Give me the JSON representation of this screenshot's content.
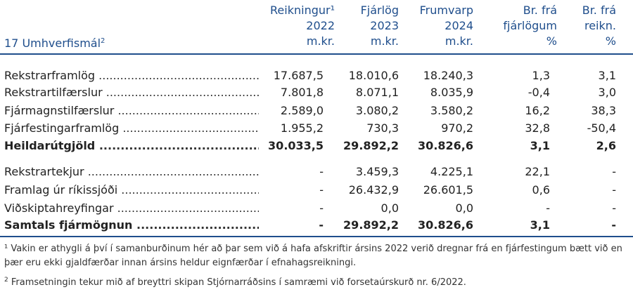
{
  "header": {
    "title": "17 Umhverfismál",
    "title_sup": "2",
    "columns": [
      {
        "l1": "Reikningur¹",
        "l2": "2022",
        "l3": "m.kr."
      },
      {
        "l1": "Fjárlög",
        "l2": "2023",
        "l3": "m.kr."
      },
      {
        "l1": "Frumvarp",
        "l2": "2024",
        "l3": "m.kr."
      },
      {
        "l1": "Br. frá",
        "l2": "fjárlögum",
        "l3": "%"
      },
      {
        "l1": "Br. frá",
        "l2": "reikn.",
        "l3": "%"
      }
    ]
  },
  "rows": [
    {
      "label": "Rekstrarframlög",
      "v1": "17.687,5",
      "v2": "18.010,6",
      "v3": "18.240,3",
      "v4": "1,3",
      "v5": "3,1"
    },
    {
      "label": "Rekstrartilfærslur",
      "v1": "7.801,8",
      "v2": "8.071,1",
      "v3": "8.035,9",
      "v4": "-0,4",
      "v5": "3,0"
    },
    {
      "label": "Fjármagnstilfærslur",
      "v1": "2.589,0",
      "v2": "3.080,2",
      "v3": "3.580,2",
      "v4": "16,2",
      "v5": "38,3"
    },
    {
      "label": "Fjárfestingarframlög",
      "v1": "1.955,2",
      "v2": "730,3",
      "v3": "970,2",
      "v4": "32,8",
      "v5": "-50,4"
    },
    {
      "label": "Heildarútgjöld",
      "v1": "30.033,5",
      "v2": "29.892,2",
      "v3": "30.826,6",
      "v4": "3,1",
      "v5": "2,6"
    },
    {
      "label": "Rekstrartekjur",
      "v1": "-",
      "v2": "3.459,3",
      "v3": "4.225,1",
      "v4": "22,1",
      "v5": "-"
    },
    {
      "label": "Framlag úr ríkissjóði",
      "v1": "-",
      "v2": "26.432,9",
      "v3": "26.601,5",
      "v4": "0,6",
      "v5": "-"
    },
    {
      "label": "Viðskiptahreyfingar",
      "v1": "-",
      "v2": "0,0",
      "v3": "0,0",
      "v4": "-",
      "v5": "-"
    },
    {
      "label": "Samtals fjármögnun",
      "v1": "-",
      "v2": "29.892,2",
      "v3": "30.826,6",
      "v4": "3,1",
      "v5": "-"
    }
  ],
  "footnotes": {
    "f1_mark": "¹",
    "f1_text": " Vakin er athygli á því í samanburðinum hér að þar sem við á hafa afskriftir ársins 2022 verið dregnar frá en fjárfestingum bætt við en þær eru ekki gjaldfærðar innan ársins heldur eignfærðar í efnahagsreikningi.",
    "f2_mark": "2",
    "f2_text": " Framsetningin tekur mið af breyttri skipan Stjórnarráðsins í samræmi við forsetaúrskurð nr. 6/2022."
  },
  "colors": {
    "header_blue": "#1f4e8c"
  }
}
